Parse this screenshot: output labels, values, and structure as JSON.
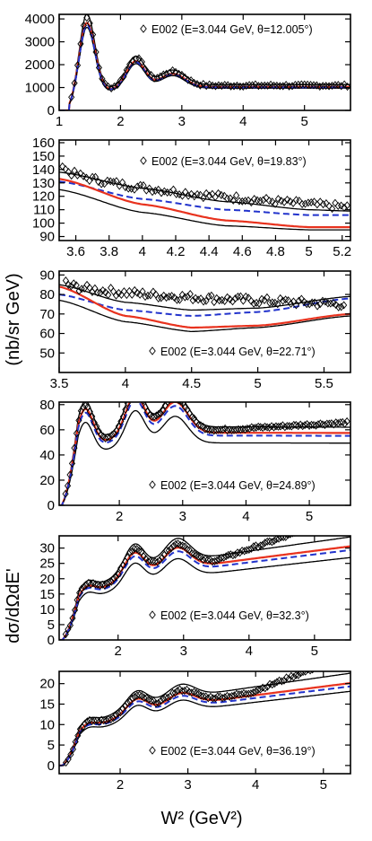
{
  "figure": {
    "ylabel_top": "(nb/sr GeV)",
    "ylabel_bottom": "dσ/dΩdE'",
    "xlabel": "W² (GeV²)"
  },
  "colors": {
    "data": "#000000",
    "black_curve": "#000000",
    "red_curve": "#e8321e",
    "blue_dashed": "#2233cc",
    "blue_band": "#3355ee"
  },
  "chart_data": [
    {
      "type": "scatter",
      "legend": "E002 (E=3.044 GeV, θ=12.005°)",
      "xlim": [
        1.0,
        5.75
      ],
      "ylim": [
        0,
        4200
      ],
      "xticks": [
        1,
        2,
        3,
        4,
        5
      ],
      "yticks": [
        0,
        1000,
        2000,
        3000,
        4000
      ],
      "xticklabels": [
        "1",
        "2",
        "3",
        "4",
        "5"
      ],
      "yticklabels": [
        "0",
        "1000",
        "2000",
        "3000",
        "4000"
      ],
      "shape": {
        "centers": [
          1.45,
          2.25,
          2.85
        ],
        "widths": [
          0.13,
          0.15,
          0.2
        ],
        "amps": [
          3200,
          1200,
          600
        ],
        "threshold": 1.17,
        "bg": [
          400,
          650,
          -0.2
        ]
      },
      "data_x": [
        1.2,
        5.7
      ],
      "data_step": 0.05,
      "curve_scales": [
        1.08,
        0.98,
        0.93
      ],
      "curve_offsets": [
        0,
        0,
        0
      ]
    },
    {
      "type": "scatter",
      "legend": "E002 (E=3.044 GeV, θ=19.83°)",
      "xlim": [
        3.5,
        5.25
      ],
      "ylim": [
        87,
        162
      ],
      "xticks": [
        3.6,
        3.8,
        4.0,
        4.2,
        4.4,
        4.6,
        4.8,
        5.0,
        5.2
      ],
      "yticks": [
        90,
        100,
        110,
        120,
        130,
        140,
        150,
        160
      ],
      "xticklabels": [
        "3.6",
        "3.8",
        "4",
        "4.2",
        "4.4",
        "4.6",
        "4.8",
        "5",
        "5.2"
      ],
      "yticklabels": [
        "90",
        "100",
        "110",
        "120",
        "130",
        "140",
        "150",
        "160"
      ],
      "data": {
        "x0": 3.52,
        "x1": 5.23,
        "step": 0.018,
        "y0": 143,
        "y1": 112,
        "noise": 5
      },
      "curves": [
        {
          "name": "black_upper",
          "x": [
            3.5,
            4.0,
            4.5,
            5.0,
            5.25
          ],
          "y": [
            138,
            126,
            116,
            110,
            109
          ]
        },
        {
          "name": "blue_dashed",
          "x": [
            3.5,
            4.0,
            4.5,
            5.0,
            5.25
          ],
          "y": [
            131,
            118,
            110,
            106,
            106
          ]
        },
        {
          "name": "red",
          "x": [
            3.5,
            4.0,
            4.5,
            5.0,
            5.25
          ],
          "y": [
            133,
            114,
            102,
            97,
            97
          ]
        },
        {
          "name": "black_lower",
          "x": [
            3.5,
            4.0,
            4.5,
            5.0,
            5.25
          ],
          "y": [
            125,
            108,
            98,
            95,
            95
          ]
        }
      ]
    },
    {
      "type": "scatter",
      "legend": "E002 (E=3.044 GeV, θ=22.71°)",
      "xlim": [
        3.5,
        5.7
      ],
      "ylim": [
        40,
        92
      ],
      "xticks": [
        3.5,
        4.0,
        4.5,
        5.0,
        5.5
      ],
      "yticks": [
        50,
        60,
        70,
        80,
        90
      ],
      "xticklabels": [
        "3.5",
        "4",
        "4.5",
        "5",
        "5.5"
      ],
      "yticklabels": [
        "50",
        "60",
        "70",
        "80",
        "90"
      ],
      "data": {
        "x0": 3.55,
        "x1": 5.65,
        "step": 0.02,
        "y0": 86,
        "y1": 75,
        "noise": 4
      },
      "curves": [
        {
          "name": "black_upper",
          "x": [
            3.5,
            4.0,
            4.5,
            5.0,
            5.7
          ],
          "y": [
            85,
            76,
            72,
            73,
            79
          ]
        },
        {
          "name": "blue_dashed",
          "x": [
            3.5,
            4.0,
            4.5,
            5.0,
            5.7
          ],
          "y": [
            80,
            72,
            69,
            71,
            78
          ]
        },
        {
          "name": "red",
          "x": [
            3.5,
            4.0,
            4.5,
            5.0,
            5.7
          ],
          "y": [
            84,
            69,
            63,
            64,
            70
          ]
        },
        {
          "name": "black_lower",
          "x": [
            3.5,
            4.0,
            4.5,
            5.0,
            5.7
          ],
          "y": [
            77,
            66,
            61,
            63,
            69
          ]
        }
      ]
    },
    {
      "type": "scatter",
      "legend": "E002 (E=3.044 GeV, θ=24.89°)",
      "xlim": [
        1.05,
        5.65
      ],
      "ylim": [
        0,
        82
      ],
      "xticks": [
        2,
        3,
        4,
        5
      ],
      "yticks": [
        0,
        20,
        40,
        60,
        80
      ],
      "xticklabels": [
        "2",
        "3",
        "4",
        "5"
      ],
      "yticklabels": [
        "0",
        "20",
        "40",
        "60",
        "80"
      ],
      "shape": {
        "centers": [
          1.45,
          2.25,
          2.88
        ],
        "widths": [
          0.13,
          0.15,
          0.2
        ],
        "amps": [
          34,
          32,
          25
        ],
        "threshold": 1.1,
        "bg": [
          24,
          34,
          -0.05
        ]
      },
      "data_x": [
        1.15,
        5.6
      ],
      "data_step": 0.035,
      "data_extra": {
        "from": 3.6,
        "slope": 3.0
      },
      "curve_scales": [
        1.08,
        1.0,
        0.86
      ],
      "curve_offsets": [
        0,
        0,
        0
      ]
    },
    {
      "type": "scatter",
      "legend": "E002 (E=3.044 GeV, θ=32.3°)",
      "xlim": [
        1.1,
        5.55
      ],
      "ylim": [
        0,
        34
      ],
      "xticks": [
        2,
        3,
        4,
        5
      ],
      "yticks": [
        0,
        5,
        10,
        15,
        20,
        25,
        30
      ],
      "xticklabels": [
        "2",
        "3",
        "4",
        "5"
      ],
      "yticklabels": [
        "0",
        "5",
        "10",
        "15",
        "20",
        "25",
        "30"
      ],
      "shape": {
        "centers": [
          1.5,
          2.25,
          2.9
        ],
        "widths": [
          0.13,
          0.15,
          0.2
        ],
        "amps": [
          4,
          8,
          7
        ],
        "threshold": 1.15,
        "bg": [
          7,
          14,
          0.9
        ]
      },
      "data_x": [
        1.2,
        5.45
      ],
      "data_step": 0.035,
      "data_extra": {
        "from": 3.5,
        "slope": 4.5
      },
      "curve_scales": [
        1.1,
        1.0,
        0.88
      ],
      "curve_offsets": [
        0,
        0,
        0
      ]
    },
    {
      "type": "scatter",
      "legend": "E002 (E=3.044 GeV, θ=36.19°)",
      "xlim": [
        1.1,
        5.4
      ],
      "ylim": [
        -2,
        23
      ],
      "xticks": [
        2,
        3,
        4,
        5
      ],
      "yticks": [
        0,
        5,
        10,
        15,
        20
      ],
      "xticklabels": [
        "2",
        "3",
        "4",
        "5"
      ],
      "yticklabels": [
        "0",
        "5",
        "10",
        "15",
        "20"
      ],
      "shape": {
        "centers": [
          1.5,
          2.25,
          2.9
        ],
        "widths": [
          0.13,
          0.15,
          0.2
        ],
        "amps": [
          2.0,
          3.5,
          3.0
        ],
        "threshold": 1.15,
        "bg": [
          4.5,
          8.5,
          0.7
        ]
      },
      "data_x": [
        1.2,
        5.35
      ],
      "data_step": 0.035,
      "data_extra": {
        "from": 3.9,
        "slope": 4.2
      },
      "curve_scales": [
        1.12,
        1.0,
        0.9
      ],
      "curve_offsets": [
        0,
        0,
        0
      ]
    }
  ]
}
